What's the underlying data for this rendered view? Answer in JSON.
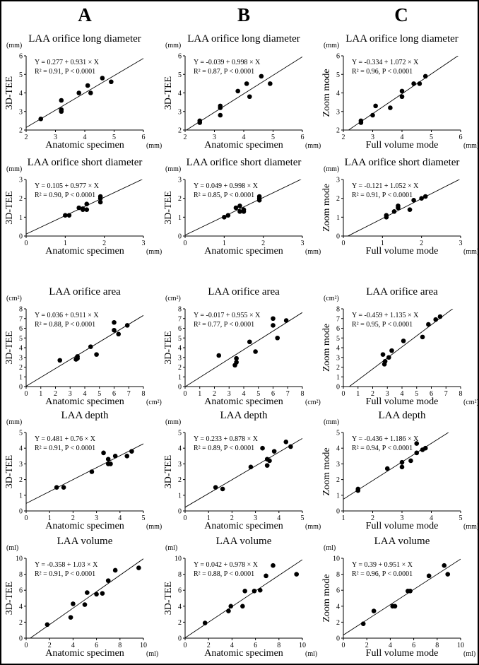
{
  "columns": [
    "A",
    "B",
    "C"
  ],
  "chart_data": [
    {
      "type": "scatter",
      "panel": "A1",
      "title": "LAA orifice long diameter",
      "equation": "Y = 0.277 + 0.931 × X",
      "stats": "R² = 0.91, P < 0.0001",
      "intercept": 0.277,
      "slope": 0.931,
      "xlabel": "Anatomic specimen",
      "ylabel": "3D-TEE",
      "xunit": "(mm)",
      "yunit": "(mm)",
      "xlim": [
        2,
        6
      ],
      "ylim": [
        2,
        6
      ],
      "xticks": [
        2,
        3,
        4,
        5,
        6
      ],
      "yticks": [
        2,
        3,
        4,
        5,
        6
      ],
      "points": [
        [
          2.5,
          2.6
        ],
        [
          3.2,
          3.6
        ],
        [
          3.2,
          3.1
        ],
        [
          3.2,
          3.0
        ],
        [
          3.8,
          4.0
        ],
        [
          4.1,
          4.4
        ],
        [
          4.2,
          4.0
        ],
        [
          4.6,
          4.8
        ],
        [
          4.9,
          4.6
        ]
      ]
    },
    {
      "type": "scatter",
      "panel": "B1",
      "title": "LAA orifice long diameter",
      "equation": "Y = -0.039 + 0.998 × X",
      "stats": "R² = 0.87, P < 0.0001",
      "intercept": -0.039,
      "slope": 0.998,
      "xlabel": "Anatomic specimen",
      "ylabel": "3D-TEE",
      "xunit": "(mm)",
      "yunit": "(mm)",
      "xlim": [
        2,
        6
      ],
      "ylim": [
        2,
        6
      ],
      "xticks": [
        2,
        3,
        4,
        5,
        6
      ],
      "yticks": [
        2,
        3,
        4,
        5,
        6
      ],
      "points": [
        [
          2.5,
          2.5
        ],
        [
          2.5,
          2.4
        ],
        [
          3.2,
          3.3
        ],
        [
          3.2,
          3.2
        ],
        [
          3.2,
          2.8
        ],
        [
          3.8,
          4.1
        ],
        [
          4.1,
          4.5
        ],
        [
          4.2,
          3.8
        ],
        [
          4.6,
          4.9
        ],
        [
          4.9,
          4.5
        ]
      ]
    },
    {
      "type": "scatter",
      "panel": "C1",
      "title": "LAA orifice long diameter",
      "equation": "Y = -0.334 + 1.072 × X",
      "stats": "R² = 0.96, P < 0.0001",
      "intercept": -0.334,
      "slope": 1.072,
      "xlabel": "Full volume mode",
      "ylabel": "Zoom mode",
      "xunit": "(mm)",
      "yunit": "(mm)",
      "xlim": [
        2,
        6
      ],
      "ylim": [
        2,
        6
      ],
      "xticks": [
        2,
        3,
        4,
        5,
        6
      ],
      "yticks": [
        2,
        3,
        4,
        5,
        6
      ],
      "points": [
        [
          2.6,
          2.5
        ],
        [
          2.6,
          2.4
        ],
        [
          3.0,
          2.8
        ],
        [
          3.1,
          3.3
        ],
        [
          3.6,
          3.2
        ],
        [
          4.0,
          4.1
        ],
        [
          4.0,
          3.8
        ],
        [
          4.4,
          4.5
        ],
        [
          4.6,
          4.5
        ],
        [
          4.8,
          4.9
        ]
      ]
    },
    {
      "type": "scatter",
      "panel": "A2",
      "title": "LAA orifice short diameter",
      "equation": "Y = 0.105 + 0.977 ×  X",
      "stats": "R² = 0.90, P < 0.0001",
      "intercept": 0.105,
      "slope": 0.977,
      "xlabel": "Anatomic specimen",
      "ylabel": "3D-TEE",
      "xunit": "(mm)",
      "yunit": "(mm)",
      "xlim": [
        0,
        3
      ],
      "ylim": [
        0,
        3
      ],
      "xticks": [
        0,
        1,
        2,
        3
      ],
      "yticks": [
        0,
        1,
        2,
        3
      ],
      "points": [
        [
          1.0,
          1.1
        ],
        [
          1.1,
          1.1
        ],
        [
          1.35,
          1.5
        ],
        [
          1.45,
          1.45
        ],
        [
          1.45,
          1.4
        ],
        [
          1.55,
          1.7
        ],
        [
          1.55,
          1.4
        ],
        [
          1.9,
          2.1
        ],
        [
          1.9,
          2.0
        ],
        [
          1.9,
          1.8
        ]
      ]
    },
    {
      "type": "scatter",
      "panel": "B2",
      "title": "LAA orifice short diameter",
      "equation": "Y = 0.049 + 0.998 × X",
      "stats": "R² = 0.85, P < 0.0001",
      "intercept": 0.049,
      "slope": 0.998,
      "xlabel": "Anatomic specimen",
      "ylabel": "3D-TEE",
      "xunit": "(mm)",
      "yunit": "(mm)",
      "xlim": [
        0,
        3
      ],
      "ylim": [
        0,
        3
      ],
      "xticks": [
        0,
        1,
        2,
        3
      ],
      "yticks": [
        0,
        1,
        2,
        3
      ],
      "points": [
        [
          1.0,
          1.0
        ],
        [
          1.1,
          1.1
        ],
        [
          1.3,
          1.5
        ],
        [
          1.4,
          1.6
        ],
        [
          1.4,
          1.3
        ],
        [
          1.5,
          1.4
        ],
        [
          1.5,
          1.3
        ],
        [
          1.9,
          2.1
        ],
        [
          1.9,
          2.0
        ],
        [
          1.9,
          1.9
        ]
      ]
    },
    {
      "type": "scatter",
      "panel": "C2",
      "title": "LAA orifice short diameter",
      "equation": "Y = -0.121 + 1.052 × X",
      "stats": "R² = 0.91, P < 0.0001",
      "intercept": -0.121,
      "slope": 1.052,
      "xlabel": "Full volume mode",
      "ylabel": "Zoom mode",
      "xunit": "(mm)",
      "yunit": "(mm)",
      "xlim": [
        0,
        3
      ],
      "ylim": [
        0,
        3
      ],
      "xticks": [
        0,
        1,
        2,
        3
      ],
      "yticks": [
        0,
        1,
        2,
        3
      ],
      "points": [
        [
          1.1,
          1.1
        ],
        [
          1.1,
          1.0
        ],
        [
          1.3,
          1.3
        ],
        [
          1.4,
          1.6
        ],
        [
          1.4,
          1.5
        ],
        [
          1.7,
          1.4
        ],
        [
          1.8,
          1.9
        ],
        [
          2.0,
          2.0
        ],
        [
          2.1,
          2.1
        ]
      ]
    },
    {
      "type": "scatter",
      "panel": "A3",
      "title": "LAA orifice area",
      "equation": "Y = 0.036 + 0.911 × X",
      "stats": "R² = 0.88, P < 0.0001",
      "intercept": 0.036,
      "slope": 0.911,
      "xlabel": "Anatomic specimen",
      "ylabel": "3D-TEE",
      "xunit": "(cm²)",
      "yunit": "(cm²)",
      "xlim": [
        0,
        8
      ],
      "ylim": [
        0,
        8
      ],
      "xticks": [
        0,
        1,
        2,
        3,
        4,
        5,
        6,
        7,
        8
      ],
      "yticks": [
        0,
        1,
        2,
        3,
        4,
        5,
        6,
        7,
        8
      ],
      "points": [
        [
          2.3,
          2.7
        ],
        [
          3.4,
          2.8
        ],
        [
          3.5,
          2.9
        ],
        [
          3.5,
          3.1
        ],
        [
          4.4,
          4.1
        ],
        [
          4.8,
          3.3
        ],
        [
          6.0,
          6.6
        ],
        [
          6.0,
          5.8
        ],
        [
          6.3,
          5.4
        ],
        [
          6.9,
          6.3
        ]
      ]
    },
    {
      "type": "scatter",
      "panel": "B3",
      "title": "LAA orifice area",
      "equation": "Y = -0.017 + 0.955 × X",
      "stats": "R² = 0.77, P < 0.0001",
      "intercept": -0.017,
      "slope": 0.955,
      "xlabel": "Anatomic specimen",
      "ylabel": "3D-TEE",
      "xunit": "(cm²)",
      "yunit": "(cm²)",
      "xlim": [
        0,
        8
      ],
      "ylim": [
        0,
        8
      ],
      "xticks": [
        0,
        1,
        2,
        3,
        4,
        5,
        6,
        7,
        8
      ],
      "yticks": [
        0,
        1,
        2,
        3,
        4,
        5,
        6,
        7,
        8
      ],
      "points": [
        [
          2.3,
          3.2
        ],
        [
          3.4,
          2.2
        ],
        [
          3.5,
          2.5
        ],
        [
          3.5,
          2.9
        ],
        [
          4.4,
          4.6
        ],
        [
          4.8,
          3.6
        ],
        [
          6.0,
          7.0
        ],
        [
          6.0,
          6.3
        ],
        [
          6.3,
          5.0
        ],
        [
          6.9,
          6.8
        ]
      ]
    },
    {
      "type": "scatter",
      "panel": "C3",
      "title": "LAA orifice area",
      "equation": "Y = -0.459 + 1.135 × X",
      "stats": "R² = 0.95, P < 0.0001",
      "intercept": -0.459,
      "slope": 1.135,
      "xlabel": "Full volume mode",
      "ylabel": "Zoom mode",
      "xunit": "(cm²)",
      "yunit": "(cm²)",
      "xlim": [
        0,
        8
      ],
      "ylim": [
        0,
        8
      ],
      "xticks": [
        0,
        1,
        2,
        3,
        4,
        5,
        6,
        7,
        8
      ],
      "yticks": [
        0,
        1,
        2,
        3,
        4,
        5,
        6,
        7,
        8
      ],
      "points": [
        [
          2.7,
          3.3
        ],
        [
          2.8,
          2.3
        ],
        [
          2.85,
          2.6
        ],
        [
          3.1,
          3.0
        ],
        [
          3.3,
          3.7
        ],
        [
          4.1,
          4.7
        ],
        [
          5.4,
          5.1
        ],
        [
          5.8,
          6.4
        ],
        [
          6.3,
          6.9
        ],
        [
          6.6,
          7.2
        ]
      ]
    },
    {
      "type": "scatter",
      "panel": "A4",
      "title": "LAA depth",
      "equation": "Y = 0.481 + 0.76 × X",
      "stats": "R² = 0.91, P < 0.0001",
      "intercept": 0.481,
      "slope": 0.76,
      "xlabel": "Anatomic specimen",
      "ylabel": "3D-TEE",
      "xunit": "(mm)",
      "yunit": "(mm)",
      "xlim": [
        0,
        5
      ],
      "ylim": [
        0,
        5
      ],
      "xticks": [
        0,
        1,
        2,
        3,
        4,
        5
      ],
      "yticks": [
        0,
        1,
        2,
        3,
        4,
        5
      ],
      "points": [
        [
          1.3,
          1.5
        ],
        [
          1.6,
          1.5
        ],
        [
          2.8,
          2.5
        ],
        [
          3.3,
          3.7
        ],
        [
          3.5,
          3.3
        ],
        [
          3.5,
          3.0
        ],
        [
          3.6,
          3.0
        ],
        [
          3.8,
          3.5
        ],
        [
          4.3,
          3.5
        ],
        [
          4.5,
          3.8
        ]
      ]
    },
    {
      "type": "scatter",
      "panel": "B4",
      "title": "LAA depth",
      "equation": "Y = 0.233 + 0.878 × X",
      "stats": "R² = 0.89, P < 0.0001",
      "intercept": 0.233,
      "slope": 0.878,
      "xlabel": "Anatomic specimen",
      "ylabel": "3D-TEE",
      "xunit": "(mm)",
      "yunit": "(mm)",
      "xlim": [
        0,
        5
      ],
      "ylim": [
        0,
        5
      ],
      "xticks": [
        0,
        1,
        2,
        3,
        4,
        5
      ],
      "yticks": [
        0,
        1,
        2,
        3,
        4,
        5
      ],
      "points": [
        [
          1.3,
          1.5
        ],
        [
          1.6,
          1.4
        ],
        [
          2.8,
          2.8
        ],
        [
          3.3,
          4.0
        ],
        [
          3.5,
          3.3
        ],
        [
          3.5,
          2.9
        ],
        [
          3.6,
          3.2
        ],
        [
          3.8,
          3.8
        ],
        [
          4.3,
          4.4
        ],
        [
          4.5,
          4.1
        ]
      ]
    },
    {
      "type": "scatter",
      "panel": "C4",
      "title": "LAA depth",
      "equation": "Y = -0.436 + 1.186 × X",
      "stats": "R² = 0.94, P < 0.0001",
      "intercept": -0.436,
      "slope": 1.186,
      "xlabel": "Full volume mode",
      "ylabel": "Zoom mode",
      "xunit": "(mm)",
      "yunit": "(mm)",
      "xlim": [
        1,
        5
      ],
      "ylim": [
        0,
        5
      ],
      "xticks": [
        1,
        2,
        3,
        4,
        5
      ],
      "yticks": [
        0,
        1,
        2,
        3,
        4,
        5
      ],
      "points": [
        [
          1.5,
          1.4
        ],
        [
          1.5,
          1.3
        ],
        [
          2.5,
          2.7
        ],
        [
          3.0,
          3.1
        ],
        [
          3.0,
          2.8
        ],
        [
          3.3,
          3.2
        ],
        [
          3.5,
          4.3
        ],
        [
          3.5,
          3.7
        ],
        [
          3.7,
          3.9
        ],
        [
          3.8,
          4.0
        ]
      ]
    },
    {
      "type": "scatter",
      "panel": "A5",
      "title": "LAA volume",
      "equation": "Y = -0.358 + 1.03 × X",
      "stats": "R² = 0.91, P < 0.0001",
      "intercept": -0.358,
      "slope": 1.03,
      "xlabel": "Anatomic specimen",
      "ylabel": "3D-TEE",
      "xunit": "(ml)",
      "yunit": "(ml)",
      "xlim": [
        0,
        10
      ],
      "ylim": [
        0,
        10
      ],
      "xticks": [
        0,
        2,
        4,
        6,
        8,
        10
      ],
      "yticks": [
        0,
        2,
        4,
        6,
        8,
        10
      ],
      "points": [
        [
          1.8,
          1.7
        ],
        [
          3.8,
          2.6
        ],
        [
          4.0,
          4.3
        ],
        [
          5.0,
          4.2
        ],
        [
          5.2,
          5.7
        ],
        [
          6.0,
          5.5
        ],
        [
          6.5,
          5.6
        ],
        [
          7.0,
          7.2
        ],
        [
          7.6,
          8.5
        ],
        [
          9.6,
          8.8
        ]
      ]
    },
    {
      "type": "scatter",
      "panel": "B5",
      "title": "LAA volume",
      "equation": "Y = 0.042 + 0.978 × X",
      "stats": "R² = 0.88, P < 0.0001",
      "intercept": 0.042,
      "slope": 0.978,
      "xlabel": "Anatomic specimen",
      "ylabel": "3D-TEE",
      "xunit": "(ml)",
      "yunit": "(ml)",
      "xlim": [
        0,
        10
      ],
      "ylim": [
        0,
        10
      ],
      "xticks": [
        0,
        2,
        4,
        6,
        8,
        10
      ],
      "yticks": [
        0,
        2,
        4,
        6,
        8,
        10
      ],
      "points": [
        [
          1.7,
          1.9
        ],
        [
          3.7,
          3.4
        ],
        [
          3.9,
          4.0
        ],
        [
          4.9,
          4.0
        ],
        [
          5.1,
          5.9
        ],
        [
          5.9,
          5.9
        ],
        [
          6.4,
          6.0
        ],
        [
          6.9,
          7.8
        ],
        [
          7.5,
          9.1
        ],
        [
          9.5,
          8.0
        ]
      ]
    },
    {
      "type": "scatter",
      "panel": "C5",
      "title": "LAA volume",
      "equation": "Y = 0.39 + 0.951 × X",
      "stats": "R² = 0.96, P < 0.0001",
      "intercept": 0.39,
      "slope": 0.951,
      "xlabel": "Full volume mode",
      "ylabel": "Zoom mode",
      "xunit": "(ml)",
      "yunit": "(ml)",
      "xlim": [
        0,
        10
      ],
      "ylim": [
        0,
        10
      ],
      "xticks": [
        0,
        2,
        4,
        6,
        8,
        10
      ],
      "yticks": [
        0,
        2,
        4,
        6,
        8,
        10
      ],
      "points": [
        [
          1.7,
          1.8
        ],
        [
          2.6,
          3.4
        ],
        [
          4.2,
          4.0
        ],
        [
          4.4,
          4.0
        ],
        [
          5.5,
          5.9
        ],
        [
          5.7,
          5.9
        ],
        [
          7.3,
          7.8
        ],
        [
          8.6,
          9.1
        ],
        [
          8.9,
          8.0
        ]
      ]
    }
  ]
}
